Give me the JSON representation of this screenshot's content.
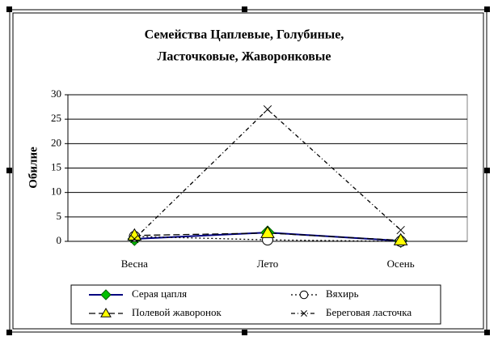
{
  "chart_data": {
    "type": "line",
    "title": [
      "Семейства Цаплевые, Голубиные,",
      "Ласточковые, Жаворонковые"
    ],
    "y_label": "Обилие",
    "categories": [
      "Весна",
      "Лето",
      "Осень"
    ],
    "series": [
      {
        "name": "Серая цапля",
        "color": "#000080",
        "marker_color": "#00c000",
        "marker": "diamond",
        "dash": "solid",
        "values": [
          0.5,
          1.8,
          0.1
        ]
      },
      {
        "name": "Вяхирь",
        "color": "#000000",
        "marker_color": "#ffffff",
        "marker": "circle",
        "dash": "dotted",
        "values": [
          1,
          0.3,
          0
        ]
      },
      {
        "name": "Полевой жаворонок",
        "color": "#000000",
        "marker_color": "#ffff00",
        "marker": "triangle",
        "dash": "dashed",
        "values": [
          1.2,
          1.7,
          0.2
        ]
      },
      {
        "name": "Береговая ласточка",
        "color": "#000000",
        "marker_color": "#000000",
        "marker": "x",
        "dash": "dashdot",
        "values": [
          0.5,
          27,
          2.3
        ]
      }
    ],
    "ylim": [
      0,
      30
    ],
    "yticks": [
      0,
      5,
      10,
      15,
      20,
      25,
      30
    ],
    "grid": true
  }
}
